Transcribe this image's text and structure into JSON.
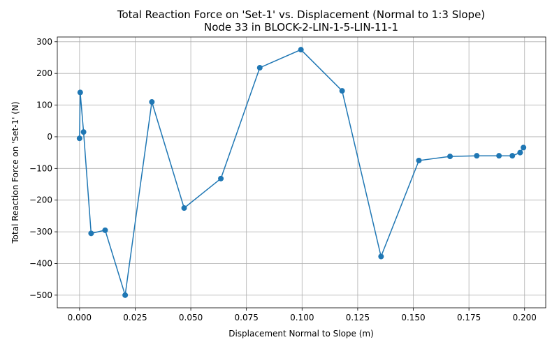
{
  "chart_data": {
    "type": "line",
    "title": "Total Reaction Force on 'Set-1' vs. Displacement (Normal to 1:3 Slope)",
    "subtitle": "Node 33 in BLOCK-2-LIN-1-5-LIN-11-1",
    "xlabel": "Displacement Normal to Slope (m)",
    "ylabel": "Total Reaction Force on 'Set-1' (N)",
    "xlim": [
      -0.01,
      0.2095
    ],
    "ylim": [
      -540,
      315
    ],
    "x_ticks": [
      0.0,
      0.025,
      0.05,
      0.075,
      0.1,
      0.125,
      0.15,
      0.175,
      0.2
    ],
    "x_tick_labels": [
      "0.000",
      "0.025",
      "0.050",
      "0.075",
      "0.100",
      "0.125",
      "0.150",
      "0.175",
      "0.200"
    ],
    "y_ticks": [
      -500,
      -400,
      -300,
      -200,
      -100,
      0,
      100,
      200,
      300
    ],
    "y_tick_labels": [
      "−500",
      "−400",
      "−300",
      "−200",
      "−100",
      "0",
      "100",
      "200",
      "300"
    ],
    "grid": true,
    "marker": "circle",
    "series": [
      {
        "color": "#1f77b4",
        "x": [
          0.0,
          0.0003,
          0.0018,
          0.0052,
          0.0115,
          0.0205,
          0.0325,
          0.047,
          0.0635,
          0.081,
          0.0995,
          0.118,
          0.1355,
          0.1525,
          0.1665,
          0.1785,
          0.1885,
          0.1945,
          0.198,
          0.1995
        ],
        "y": [
          -5,
          140,
          15,
          -305,
          -295,
          -500,
          110,
          -225,
          -132,
          218,
          275,
          145,
          -378,
          -75,
          -62,
          -60,
          -60,
          -60,
          -50,
          -34
        ]
      }
    ]
  }
}
